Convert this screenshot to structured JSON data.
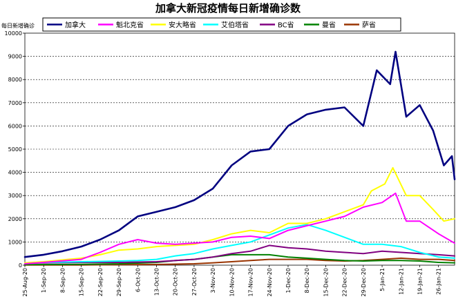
{
  "chart_data": {
    "type": "line",
    "title": "加拿大新冠疫情每日新增确诊数",
    "ylabel": "每日新增确诊",
    "xlabel": "",
    "ylim": [
      0,
      10000
    ],
    "yticks": [
      0,
      1000,
      2000,
      3000,
      4000,
      5000,
      6000,
      7000,
      8000,
      9000,
      10000
    ],
    "x_start": "2020-08-25",
    "x_end": "2021-02-01",
    "xticks": [
      "25-Aug-20",
      "1-Sep-20",
      "8-Sep-20",
      "15-Sep-20",
      "22-Sep-20",
      "29-Sep-20",
      "6-Oct-20",
      "13-Oct-20",
      "20-Oct-20",
      "27-Oct-20",
      "3-Nov-20",
      "10-Nov-20",
      "17-Nov-20",
      "24-Nov-20",
      "1-Dec-20",
      "8-Dec-20",
      "15-Dec-20",
      "22-Dec-20",
      "29-Dec-20",
      "5-Jan-21",
      "12-Jan-21",
      "19-Jan-21",
      "26-Jan-21"
    ],
    "grid": "horizontal",
    "legend_position": "top",
    "series": [
      {
        "name": "加拿大",
        "color": "#000080",
        "points": [
          [
            "2020-08-25",
            350
          ],
          [
            "2020-09-01",
            450
          ],
          [
            "2020-09-08",
            600
          ],
          [
            "2020-09-15",
            800
          ],
          [
            "2020-09-22",
            1100
          ],
          [
            "2020-09-29",
            1500
          ],
          [
            "2020-10-06",
            2100
          ],
          [
            "2020-10-13",
            2300
          ],
          [
            "2020-10-20",
            2500
          ],
          [
            "2020-10-27",
            2800
          ],
          [
            "2020-11-03",
            3300
          ],
          [
            "2020-11-10",
            4300
          ],
          [
            "2020-11-17",
            4900
          ],
          [
            "2020-11-24",
            5000
          ],
          [
            "2020-12-01",
            6000
          ],
          [
            "2020-12-08",
            6500
          ],
          [
            "2020-12-15",
            6700
          ],
          [
            "2020-12-22",
            6800
          ],
          [
            "2020-12-29",
            6000
          ],
          [
            "2021-01-03",
            8400
          ],
          [
            "2021-01-08",
            7800
          ],
          [
            "2021-01-10",
            9200
          ],
          [
            "2021-01-14",
            6400
          ],
          [
            "2021-01-19",
            6900
          ],
          [
            "2021-01-24",
            5800
          ],
          [
            "2021-01-28",
            4300
          ],
          [
            "2021-01-31",
            4700
          ],
          [
            "2021-02-01",
            3700
          ]
        ]
      },
      {
        "name": "魁北克省",
        "color": "#ff00ff",
        "points": [
          [
            "2020-08-25",
            60
          ],
          [
            "2020-09-01",
            120
          ],
          [
            "2020-09-15",
            250
          ],
          [
            "2020-09-22",
            550
          ],
          [
            "2020-09-29",
            900
          ],
          [
            "2020-10-06",
            1100
          ],
          [
            "2020-10-13",
            950
          ],
          [
            "2020-10-20",
            900
          ],
          [
            "2020-10-27",
            950
          ],
          [
            "2020-11-03",
            1000
          ],
          [
            "2020-11-10",
            1200
          ],
          [
            "2020-11-17",
            1250
          ],
          [
            "2020-11-24",
            1150
          ],
          [
            "2020-12-01",
            1500
          ],
          [
            "2020-12-08",
            1700
          ],
          [
            "2020-12-15",
            1900
          ],
          [
            "2020-12-22",
            2100
          ],
          [
            "2020-12-29",
            2500
          ],
          [
            "2021-01-05",
            2700
          ],
          [
            "2021-01-10",
            3100
          ],
          [
            "2021-01-14",
            1900
          ],
          [
            "2021-01-19",
            1900
          ],
          [
            "2021-01-26",
            1350
          ],
          [
            "2021-02-01",
            950
          ]
        ]
      },
      {
        "name": "安大略省",
        "color": "#ffff00",
        "points": [
          [
            "2020-08-25",
            100
          ],
          [
            "2020-09-01",
            150
          ],
          [
            "2020-09-15",
            300
          ],
          [
            "2020-09-22",
            450
          ],
          [
            "2020-09-29",
            650
          ],
          [
            "2020-10-06",
            700
          ],
          [
            "2020-10-13",
            800
          ],
          [
            "2020-10-20",
            850
          ],
          [
            "2020-10-27",
            900
          ],
          [
            "2020-11-03",
            1100
          ],
          [
            "2020-11-10",
            1350
          ],
          [
            "2020-11-17",
            1500
          ],
          [
            "2020-11-24",
            1400
          ],
          [
            "2020-12-01",
            1800
          ],
          [
            "2020-12-08",
            1800
          ],
          [
            "2020-12-15",
            2000
          ],
          [
            "2020-12-22",
            2300
          ],
          [
            "2020-12-29",
            2600
          ],
          [
            "2021-01-01",
            3200
          ],
          [
            "2021-01-06",
            3500
          ],
          [
            "2021-01-09",
            4200
          ],
          [
            "2021-01-14",
            3000
          ],
          [
            "2021-01-19",
            3000
          ],
          [
            "2021-01-24",
            2400
          ],
          [
            "2021-01-28",
            1900
          ],
          [
            "2021-02-01",
            2000
          ]
        ]
      },
      {
        "name": "艾伯塔省",
        "color": "#00ffff",
        "points": [
          [
            "2020-08-25",
            100
          ],
          [
            "2020-09-15",
            150
          ],
          [
            "2020-09-29",
            180
          ],
          [
            "2020-10-06",
            200
          ],
          [
            "2020-10-13",
            250
          ],
          [
            "2020-10-20",
            400
          ],
          [
            "2020-10-27",
            500
          ],
          [
            "2020-11-03",
            700
          ],
          [
            "2020-11-10",
            850
          ],
          [
            "2020-11-17",
            1000
          ],
          [
            "2020-11-24",
            1300
          ],
          [
            "2020-12-01",
            1600
          ],
          [
            "2020-12-08",
            1750
          ],
          [
            "2020-12-15",
            1500
          ],
          [
            "2020-12-22",
            1200
          ],
          [
            "2020-12-29",
            900
          ],
          [
            "2021-01-05",
            900
          ],
          [
            "2021-01-12",
            800
          ],
          [
            "2021-01-19",
            550
          ],
          [
            "2021-01-26",
            350
          ],
          [
            "2021-02-01",
            300
          ]
        ]
      },
      {
        "name": "BC省",
        "color": "#800080",
        "points": [
          [
            "2020-08-25",
            80
          ],
          [
            "2020-09-01",
            100
          ],
          [
            "2020-09-15",
            120
          ],
          [
            "2020-09-29",
            120
          ],
          [
            "2020-10-13",
            150
          ],
          [
            "2020-10-27",
            250
          ],
          [
            "2020-11-03",
            350
          ],
          [
            "2020-11-10",
            500
          ],
          [
            "2020-11-17",
            600
          ],
          [
            "2020-11-24",
            850
          ],
          [
            "2020-12-01",
            750
          ],
          [
            "2020-12-08",
            700
          ],
          [
            "2020-12-15",
            600
          ],
          [
            "2020-12-22",
            550
          ],
          [
            "2020-12-29",
            500
          ],
          [
            "2021-01-05",
            600
          ],
          [
            "2021-01-12",
            550
          ],
          [
            "2021-01-19",
            500
          ],
          [
            "2021-01-26",
            450
          ],
          [
            "2021-02-01",
            400
          ]
        ]
      },
      {
        "name": "曼省",
        "color": "#008000",
        "points": [
          [
            "2020-08-25",
            20
          ],
          [
            "2020-09-15",
            40
          ],
          [
            "2020-09-29",
            60
          ],
          [
            "2020-10-13",
            120
          ],
          [
            "2020-10-20",
            200
          ],
          [
            "2020-10-27",
            250
          ],
          [
            "2020-11-03",
            350
          ],
          [
            "2020-11-10",
            450
          ],
          [
            "2020-11-17",
            450
          ],
          [
            "2020-11-24",
            450
          ],
          [
            "2020-12-01",
            350
          ],
          [
            "2020-12-08",
            300
          ],
          [
            "2020-12-15",
            250
          ],
          [
            "2020-12-22",
            200
          ],
          [
            "2020-12-29",
            180
          ],
          [
            "2021-01-05",
            200
          ],
          [
            "2021-01-12",
            200
          ],
          [
            "2021-01-19",
            180
          ],
          [
            "2021-01-26",
            120
          ],
          [
            "2021-02-01",
            100
          ]
        ]
      },
      {
        "name": "萨省",
        "color": "#993300",
        "points": [
          [
            "2020-08-25",
            5
          ],
          [
            "2020-09-15",
            10
          ],
          [
            "2020-09-29",
            20
          ],
          [
            "2020-10-13",
            30
          ],
          [
            "2020-10-27",
            60
          ],
          [
            "2020-11-03",
            100
          ],
          [
            "2020-11-10",
            150
          ],
          [
            "2020-11-17",
            200
          ],
          [
            "2020-11-24",
            250
          ],
          [
            "2020-12-01",
            250
          ],
          [
            "2020-12-08",
            250
          ],
          [
            "2020-12-15",
            200
          ],
          [
            "2020-12-22",
            180
          ],
          [
            "2020-12-29",
            200
          ],
          [
            "2021-01-05",
            250
          ],
          [
            "2021-01-12",
            300
          ],
          [
            "2021-01-19",
            250
          ],
          [
            "2021-01-26",
            250
          ],
          [
            "2021-02-01",
            200
          ]
        ]
      }
    ]
  }
}
